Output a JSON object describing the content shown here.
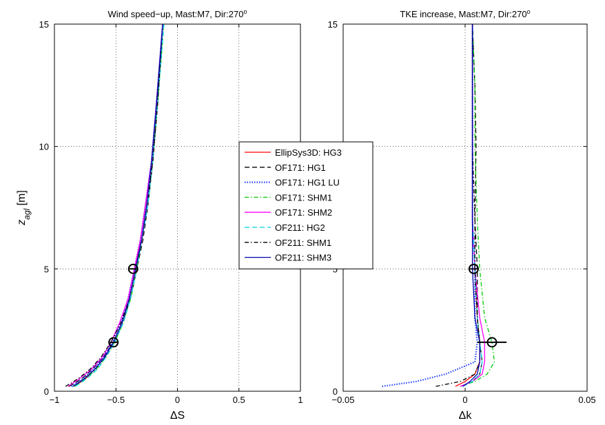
{
  "chart_data": [
    {
      "type": "line",
      "title": "Wind speed−up, Mast:M7, Dir:270",
      "title_sup": "o",
      "xlabel": "ΔS",
      "ylabel": "z",
      "ylabel_sub": "agl",
      "ylabel_unit": " [m]",
      "xlim": [
        -1,
        1
      ],
      "ylim": [
        0,
        15
      ],
      "xticks": [
        "−1",
        "−0.5",
        "0",
        "0.5",
        "1"
      ],
      "xtick_values": [
        -1,
        -0.5,
        0,
        0.5,
        1
      ],
      "yticks": [
        "0",
        "5",
        "10",
        "15"
      ],
      "ytick_values": [
        0,
        5,
        10,
        15
      ],
      "grid": true,
      "markers": [
        {
          "x": -0.52,
          "y": 2,
          "xerr": 0.03
        },
        {
          "x": -0.36,
          "y": 5,
          "xerr": 0.03
        }
      ],
      "series": [
        {
          "name": "EllipSys3D: HG3",
          "color": "#ff0000",
          "dash": "",
          "x": [
            -0.84,
            -0.75,
            -0.67,
            -0.59,
            -0.52,
            -0.45,
            -0.39,
            -0.34,
            -0.3,
            -0.26,
            -0.21,
            -0.17,
            -0.12
          ],
          "y": [
            0.2,
            0.5,
            0.9,
            1.4,
            2.0,
            2.8,
            3.8,
            5.0,
            6.2,
            7.6,
            9.4,
            11.8,
            15.0
          ]
        },
        {
          "name": "OF171: HG1",
          "color": "#000000",
          "dash": "7,4",
          "x": [
            -0.88,
            -0.78,
            -0.69,
            -0.6,
            -0.52,
            -0.45,
            -0.38,
            -0.33,
            -0.28,
            -0.24,
            -0.2,
            -0.16,
            -0.12
          ],
          "y": [
            0.2,
            0.5,
            0.9,
            1.4,
            2.0,
            2.8,
            3.8,
            5.0,
            6.2,
            7.6,
            9.4,
            11.8,
            15.0
          ]
        },
        {
          "name": "OF171: HG1 LU",
          "color": "#1f3fff",
          "dash": "1.5,2",
          "x": [
            -0.86,
            -0.77,
            -0.68,
            -0.6,
            -0.53,
            -0.46,
            -0.4,
            -0.35,
            -0.3,
            -0.26,
            -0.21,
            -0.17,
            -0.12
          ],
          "y": [
            0.2,
            0.5,
            0.9,
            1.4,
            2.0,
            2.8,
            3.8,
            5.0,
            6.2,
            7.6,
            9.4,
            11.8,
            15.0
          ]
        },
        {
          "name": "OF171: SHM1",
          "color": "#00cc00",
          "dash": "6,3,1.5,3",
          "x": [
            -0.84,
            -0.75,
            -0.66,
            -0.58,
            -0.51,
            -0.44,
            -0.38,
            -0.33,
            -0.29,
            -0.25,
            -0.21,
            -0.16,
            -0.11
          ],
          "y": [
            0.2,
            0.5,
            0.9,
            1.4,
            2.0,
            2.8,
            3.8,
            5.0,
            6.2,
            7.6,
            9.4,
            11.8,
            15.0
          ]
        },
        {
          "name": "OF171: SHM2",
          "color": "#ff00ff",
          "dash": "",
          "x": [
            -0.89,
            -0.8,
            -0.7,
            -0.61,
            -0.54,
            -0.47,
            -0.4,
            -0.35,
            -0.3,
            -0.26,
            -0.21,
            -0.17,
            -0.12
          ],
          "y": [
            0.2,
            0.5,
            0.9,
            1.4,
            2.0,
            2.8,
            3.8,
            5.0,
            6.2,
            7.6,
            9.4,
            11.8,
            15.0
          ]
        },
        {
          "name": "OF211: HG2",
          "color": "#00d0e0",
          "dash": "7,4",
          "x": [
            -0.83,
            -0.74,
            -0.65,
            -0.58,
            -0.51,
            -0.44,
            -0.38,
            -0.33,
            -0.29,
            -0.24,
            -0.2,
            -0.16,
            -0.11
          ],
          "y": [
            0.2,
            0.5,
            0.9,
            1.4,
            2.0,
            2.8,
            3.8,
            5.0,
            6.2,
            7.6,
            9.4,
            11.8,
            15.0
          ]
        },
        {
          "name": "OF211: SHM1",
          "color": "#000000",
          "dash": "6,3,1.5,3",
          "x": [
            -0.91,
            -0.81,
            -0.71,
            -0.62,
            -0.54,
            -0.46,
            -0.39,
            -0.34,
            -0.29,
            -0.25,
            -0.2,
            -0.16,
            -0.12
          ],
          "y": [
            0.2,
            0.5,
            0.9,
            1.4,
            2.0,
            2.8,
            3.8,
            5.0,
            6.2,
            7.6,
            9.4,
            11.8,
            15.0
          ]
        },
        {
          "name": "OF211: SHM3",
          "color": "#0000aa",
          "dash": "",
          "x": [
            -0.85,
            -0.76,
            -0.67,
            -0.59,
            -0.52,
            -0.45,
            -0.39,
            -0.34,
            -0.29,
            -0.25,
            -0.21,
            -0.17,
            -0.12
          ],
          "y": [
            0.2,
            0.5,
            0.9,
            1.4,
            2.0,
            2.8,
            3.8,
            5.0,
            6.2,
            7.6,
            9.4,
            11.8,
            15.0
          ]
        }
      ]
    },
    {
      "type": "line",
      "title": "TKE increase, Mast:M7, Dir:270",
      "title_sup": "o",
      "xlabel": "Δk",
      "xlim": [
        -0.05,
        0.05
      ],
      "ylim": [
        0,
        15
      ],
      "xticks": [
        "−0.05",
        "0",
        "0.05"
      ],
      "xtick_values": [
        -0.05,
        0,
        0.05
      ],
      "yticks": [
        "0",
        "5",
        "10",
        "15"
      ],
      "ytick_values": [
        0,
        5,
        10,
        15
      ],
      "grid": true,
      "markers": [
        {
          "x": 0.0035,
          "y": 5,
          "xerr": 0.0015
        },
        {
          "x": 0.011,
          "y": 2,
          "xerr": 0.006
        }
      ],
      "series": [
        {
          "name": "EllipSys3D: HG3",
          "color": "#ff0000",
          "dash": "",
          "x": [
            -0.004,
            0.0,
            0.004,
            0.006,
            0.006,
            0.005,
            0.004,
            0.003,
            0.003,
            0.003,
            0.003
          ],
          "y": [
            0.2,
            0.4,
            0.7,
            1.2,
            2.0,
            3.0,
            5.0,
            7.0,
            10.0,
            12.5,
            15.0
          ]
        },
        {
          "name": "OF171: HG1",
          "color": "#000000",
          "dash": "7,4",
          "x": [
            -0.002,
            0.003,
            0.006,
            0.007,
            0.006,
            0.005,
            0.005,
            0.004,
            0.0045,
            0.004,
            0.003
          ],
          "y": [
            0.2,
            0.4,
            0.7,
            1.2,
            2.0,
            3.0,
            5.0,
            7.0,
            10.0,
            12.5,
            15.0
          ]
        },
        {
          "name": "OF171: HG1 LU",
          "color": "#1f3fff",
          "dash": "1.5,2",
          "x": [
            -0.034,
            -0.02,
            -0.008,
            0.004,
            0.005,
            0.004,
            0.004,
            0.003,
            0.003,
            0.003,
            0.003
          ],
          "y": [
            0.2,
            0.4,
            0.7,
            1.2,
            2.0,
            3.0,
            5.0,
            7.0,
            10.0,
            12.5,
            15.0
          ]
        },
        {
          "name": "OF171: SHM1",
          "color": "#00cc00",
          "dash": "6,3,1.5,3",
          "x": [
            -0.002,
            0.004,
            0.009,
            0.012,
            0.011,
            0.008,
            0.006,
            0.005,
            0.004,
            0.004,
            0.003
          ],
          "y": [
            0.2,
            0.4,
            0.7,
            1.2,
            2.0,
            3.0,
            5.0,
            7.0,
            10.0,
            12.5,
            15.0
          ]
        },
        {
          "name": "OF171: SHM2",
          "color": "#ff00ff",
          "dash": "",
          "x": [
            -0.002,
            0.003,
            0.007,
            0.008,
            0.008,
            0.006,
            0.004,
            0.003,
            0.003,
            0.003,
            0.003
          ],
          "y": [
            0.2,
            0.4,
            0.7,
            1.2,
            2.0,
            3.0,
            5.0,
            7.0,
            10.0,
            12.5,
            15.0
          ]
        },
        {
          "name": "OF211: HG2",
          "color": "#00d0e0",
          "dash": "7,4",
          "x": [
            -0.001,
            0.003,
            0.006,
            0.007,
            0.006,
            0.005,
            0.004,
            0.003,
            0.003,
            0.003,
            0.003
          ],
          "y": [
            0.2,
            0.4,
            0.7,
            1.2,
            2.0,
            3.0,
            5.0,
            7.0,
            10.0,
            12.5,
            15.0
          ]
        },
        {
          "name": "OF211: SHM1",
          "color": "#000000",
          "dash": "6,3,1.5,3",
          "x": [
            -0.012,
            -0.002,
            0.004,
            0.006,
            0.006,
            0.005,
            0.004,
            0.004,
            0.003,
            0.003,
            0.003
          ],
          "y": [
            0.2,
            0.4,
            0.7,
            1.2,
            2.0,
            3.0,
            5.0,
            7.0,
            10.0,
            12.5,
            15.0
          ]
        },
        {
          "name": "OF211: SHM3",
          "color": "#0000aa",
          "dash": "",
          "x": [
            -0.001,
            0.002,
            0.005,
            0.006,
            0.006,
            0.004,
            0.003,
            0.003,
            0.003,
            0.003,
            0.003
          ],
          "y": [
            0.2,
            0.4,
            0.7,
            1.2,
            2.0,
            3.0,
            5.0,
            7.0,
            10.0,
            12.5,
            15.0
          ]
        }
      ]
    }
  ],
  "legend": {
    "location": "center",
    "entries": [
      "EllipSys3D: HG3",
      "OF171: HG1",
      "OF171: HG1 LU",
      "OF171: SHM1",
      "OF171: SHM2",
      "OF211: HG2",
      "OF211: SHM1",
      "OF211: SHM3"
    ]
  }
}
